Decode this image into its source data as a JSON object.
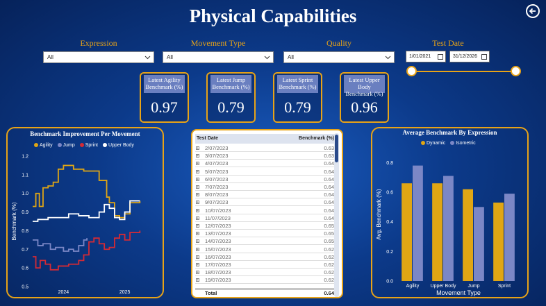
{
  "header": {
    "title": "Physical Capabilities",
    "back_icon": "back-arrow-icon"
  },
  "filters": {
    "expression": {
      "label": "Expression",
      "value": "All"
    },
    "movement_type": {
      "label": "Movement Type",
      "value": "All"
    },
    "quality": {
      "label": "Quality",
      "value": "All"
    },
    "test_date": {
      "label": "Test Date",
      "start": "1/01/2021",
      "end": "31/12/2026"
    }
  },
  "cards": [
    {
      "label": "Latest Agility Benchmark (%)",
      "value": "0.97"
    },
    {
      "label": "Latest Jump Benchmark (%)",
      "value": "0.79"
    },
    {
      "label": "Latest Sprint Benchmark (%)",
      "value": "0.79"
    },
    {
      "label": "Latest Upper Body Benchmark (%)",
      "value": "0.96"
    }
  ],
  "colors": {
    "accent": "#e8a317",
    "agility": "#e0a614",
    "jump": "#7b87c6",
    "sprint": "#d42a35",
    "upper_body": "#ffffff"
  },
  "table": {
    "col_date": "Test Date",
    "col_benchmark": "Benchmark (%)",
    "rows": [
      {
        "date": "2/07/2023",
        "value": "0.63"
      },
      {
        "date": "3/07/2023",
        "value": "0.63"
      },
      {
        "date": "4/07/2023",
        "value": "0.64"
      },
      {
        "date": "5/07/2023",
        "value": "0.64"
      },
      {
        "date": "6/07/2023",
        "value": "0.64"
      },
      {
        "date": "7/07/2023",
        "value": "0.64"
      },
      {
        "date": "8/07/2023",
        "value": "0.64"
      },
      {
        "date": "9/07/2023",
        "value": "0.64"
      },
      {
        "date": "10/07/2023",
        "value": "0.64"
      },
      {
        "date": "11/07/2023",
        "value": "0.64"
      },
      {
        "date": "12/07/2023",
        "value": "0.65"
      },
      {
        "date": "13/07/2023",
        "value": "0.65"
      },
      {
        "date": "14/07/2023",
        "value": "0.65"
      },
      {
        "date": "15/07/2023",
        "value": "0.62"
      },
      {
        "date": "16/07/2023",
        "value": "0.62"
      },
      {
        "date": "17/07/2023",
        "value": "0.62"
      },
      {
        "date": "18/07/2023",
        "value": "0.62"
      },
      {
        "date": "19/07/2023",
        "value": "0.62"
      }
    ],
    "total_label": "Total",
    "total_value": "0.64"
  },
  "chart_data": [
    {
      "type": "line",
      "title": "Benchmark Improvement Per Movement",
      "ylabel": "Benchmark (%)",
      "xlabel": "",
      "ylim": [
        0.5,
        1.2
      ],
      "yticks": [
        "0.5",
        "0.6",
        "0.7",
        "0.8",
        "0.9",
        "1.0",
        "1.1",
        "1.2"
      ],
      "xticks": [
        "2024",
        "2025"
      ],
      "x_range": [
        "2023-07-01",
        "2025-06-30"
      ],
      "legend": "top-left",
      "series": [
        {
          "name": "Agility",
          "color": "#e0a614",
          "points": [
            [
              "2023-07-01",
              0.93
            ],
            [
              "2023-07-20",
              1.0
            ],
            [
              "2023-08-10",
              0.93
            ],
            [
              "2023-09-01",
              1.03
            ],
            [
              "2023-10-01",
              1.04
            ],
            [
              "2023-11-01",
              1.06
            ],
            [
              "2023-12-01",
              1.13
            ],
            [
              "2024-01-01",
              1.15
            ],
            [
              "2024-03-01",
              1.13
            ],
            [
              "2024-05-01",
              1.12
            ],
            [
              "2024-08-01",
              1.07
            ],
            [
              "2024-09-15",
              0.98
            ],
            [
              "2024-10-01",
              0.95
            ],
            [
              "2024-11-01",
              0.88
            ],
            [
              "2024-12-01",
              0.87
            ],
            [
              "2025-01-01",
              0.89
            ],
            [
              "2025-02-01",
              0.95
            ],
            [
              "2025-04-01",
              0.96
            ]
          ]
        },
        {
          "name": "Jump",
          "color": "#7b87c6",
          "points": [
            [
              "2023-07-01",
              0.75
            ],
            [
              "2023-08-01",
              0.72
            ],
            [
              "2023-09-01",
              0.73
            ],
            [
              "2023-10-15",
              0.7
            ],
            [
              "2023-11-15",
              0.71
            ],
            [
              "2024-01-01",
              0.69
            ],
            [
              "2024-02-01",
              0.7
            ],
            [
              "2024-03-01",
              0.69
            ],
            [
              "2024-04-01",
              0.72
            ],
            [
              "2024-05-01",
              0.75
            ],
            [
              "2024-05-20",
              0.76
            ]
          ]
        },
        {
          "name": "Sprint",
          "color": "#d42a35",
          "points": [
            [
              "2023-07-01",
              0.66
            ],
            [
              "2023-07-20",
              0.6
            ],
            [
              "2023-08-15",
              0.64
            ],
            [
              "2023-09-15",
              0.62
            ],
            [
              "2023-10-15",
              0.59
            ],
            [
              "2023-12-01",
              0.61
            ],
            [
              "2024-02-01",
              0.62
            ],
            [
              "2024-04-01",
              0.64
            ],
            [
              "2024-05-01",
              0.67
            ],
            [
              "2024-06-01",
              0.74
            ],
            [
              "2024-07-01",
              0.76
            ],
            [
              "2024-08-01",
              0.73
            ],
            [
              "2024-09-01",
              0.7
            ],
            [
              "2024-10-01",
              0.71
            ],
            [
              "2024-11-01",
              0.76
            ],
            [
              "2024-12-01",
              0.78
            ],
            [
              "2025-01-01",
              0.75
            ],
            [
              "2025-02-01",
              0.79
            ],
            [
              "2025-04-01",
              0.8
            ]
          ]
        },
        {
          "name": "Upper Body",
          "color": "#ffffff",
          "points": [
            [
              "2023-07-01",
              0.85
            ],
            [
              "2023-08-01",
              0.86
            ],
            [
              "2023-10-01",
              0.87
            ],
            [
              "2024-01-01",
              0.87
            ],
            [
              "2024-02-01",
              0.89
            ],
            [
              "2024-04-01",
              0.88
            ],
            [
              "2024-06-01",
              0.87
            ],
            [
              "2024-08-01",
              0.9
            ],
            [
              "2024-09-01",
              0.94
            ],
            [
              "2024-10-01",
              0.92
            ],
            [
              "2024-11-01",
              0.87
            ],
            [
              "2024-12-01",
              0.86
            ],
            [
              "2025-01-01",
              0.9
            ],
            [
              "2025-02-01",
              0.96
            ],
            [
              "2025-04-01",
              0.96
            ]
          ]
        }
      ]
    },
    {
      "type": "bar",
      "title": "Average Benchmark By Expression",
      "xlabel": "Movement Type",
      "ylabel": "Avg. Benchmark (%)",
      "ylim": [
        0,
        0.9
      ],
      "yticks": [
        "0.0",
        "0.2",
        "0.4",
        "0.6",
        "0.8"
      ],
      "legend": "top-left",
      "categories": [
        "Agility",
        "Upper Body",
        "Jump",
        "Sprint"
      ],
      "series": [
        {
          "name": "Dynamic",
          "color": "#e0a614",
          "values": [
            0.66,
            0.66,
            0.62,
            0.53
          ]
        },
        {
          "name": "Isometric",
          "color": "#7b87c6",
          "values": [
            0.78,
            0.71,
            0.5,
            0.59
          ]
        }
      ]
    }
  ]
}
